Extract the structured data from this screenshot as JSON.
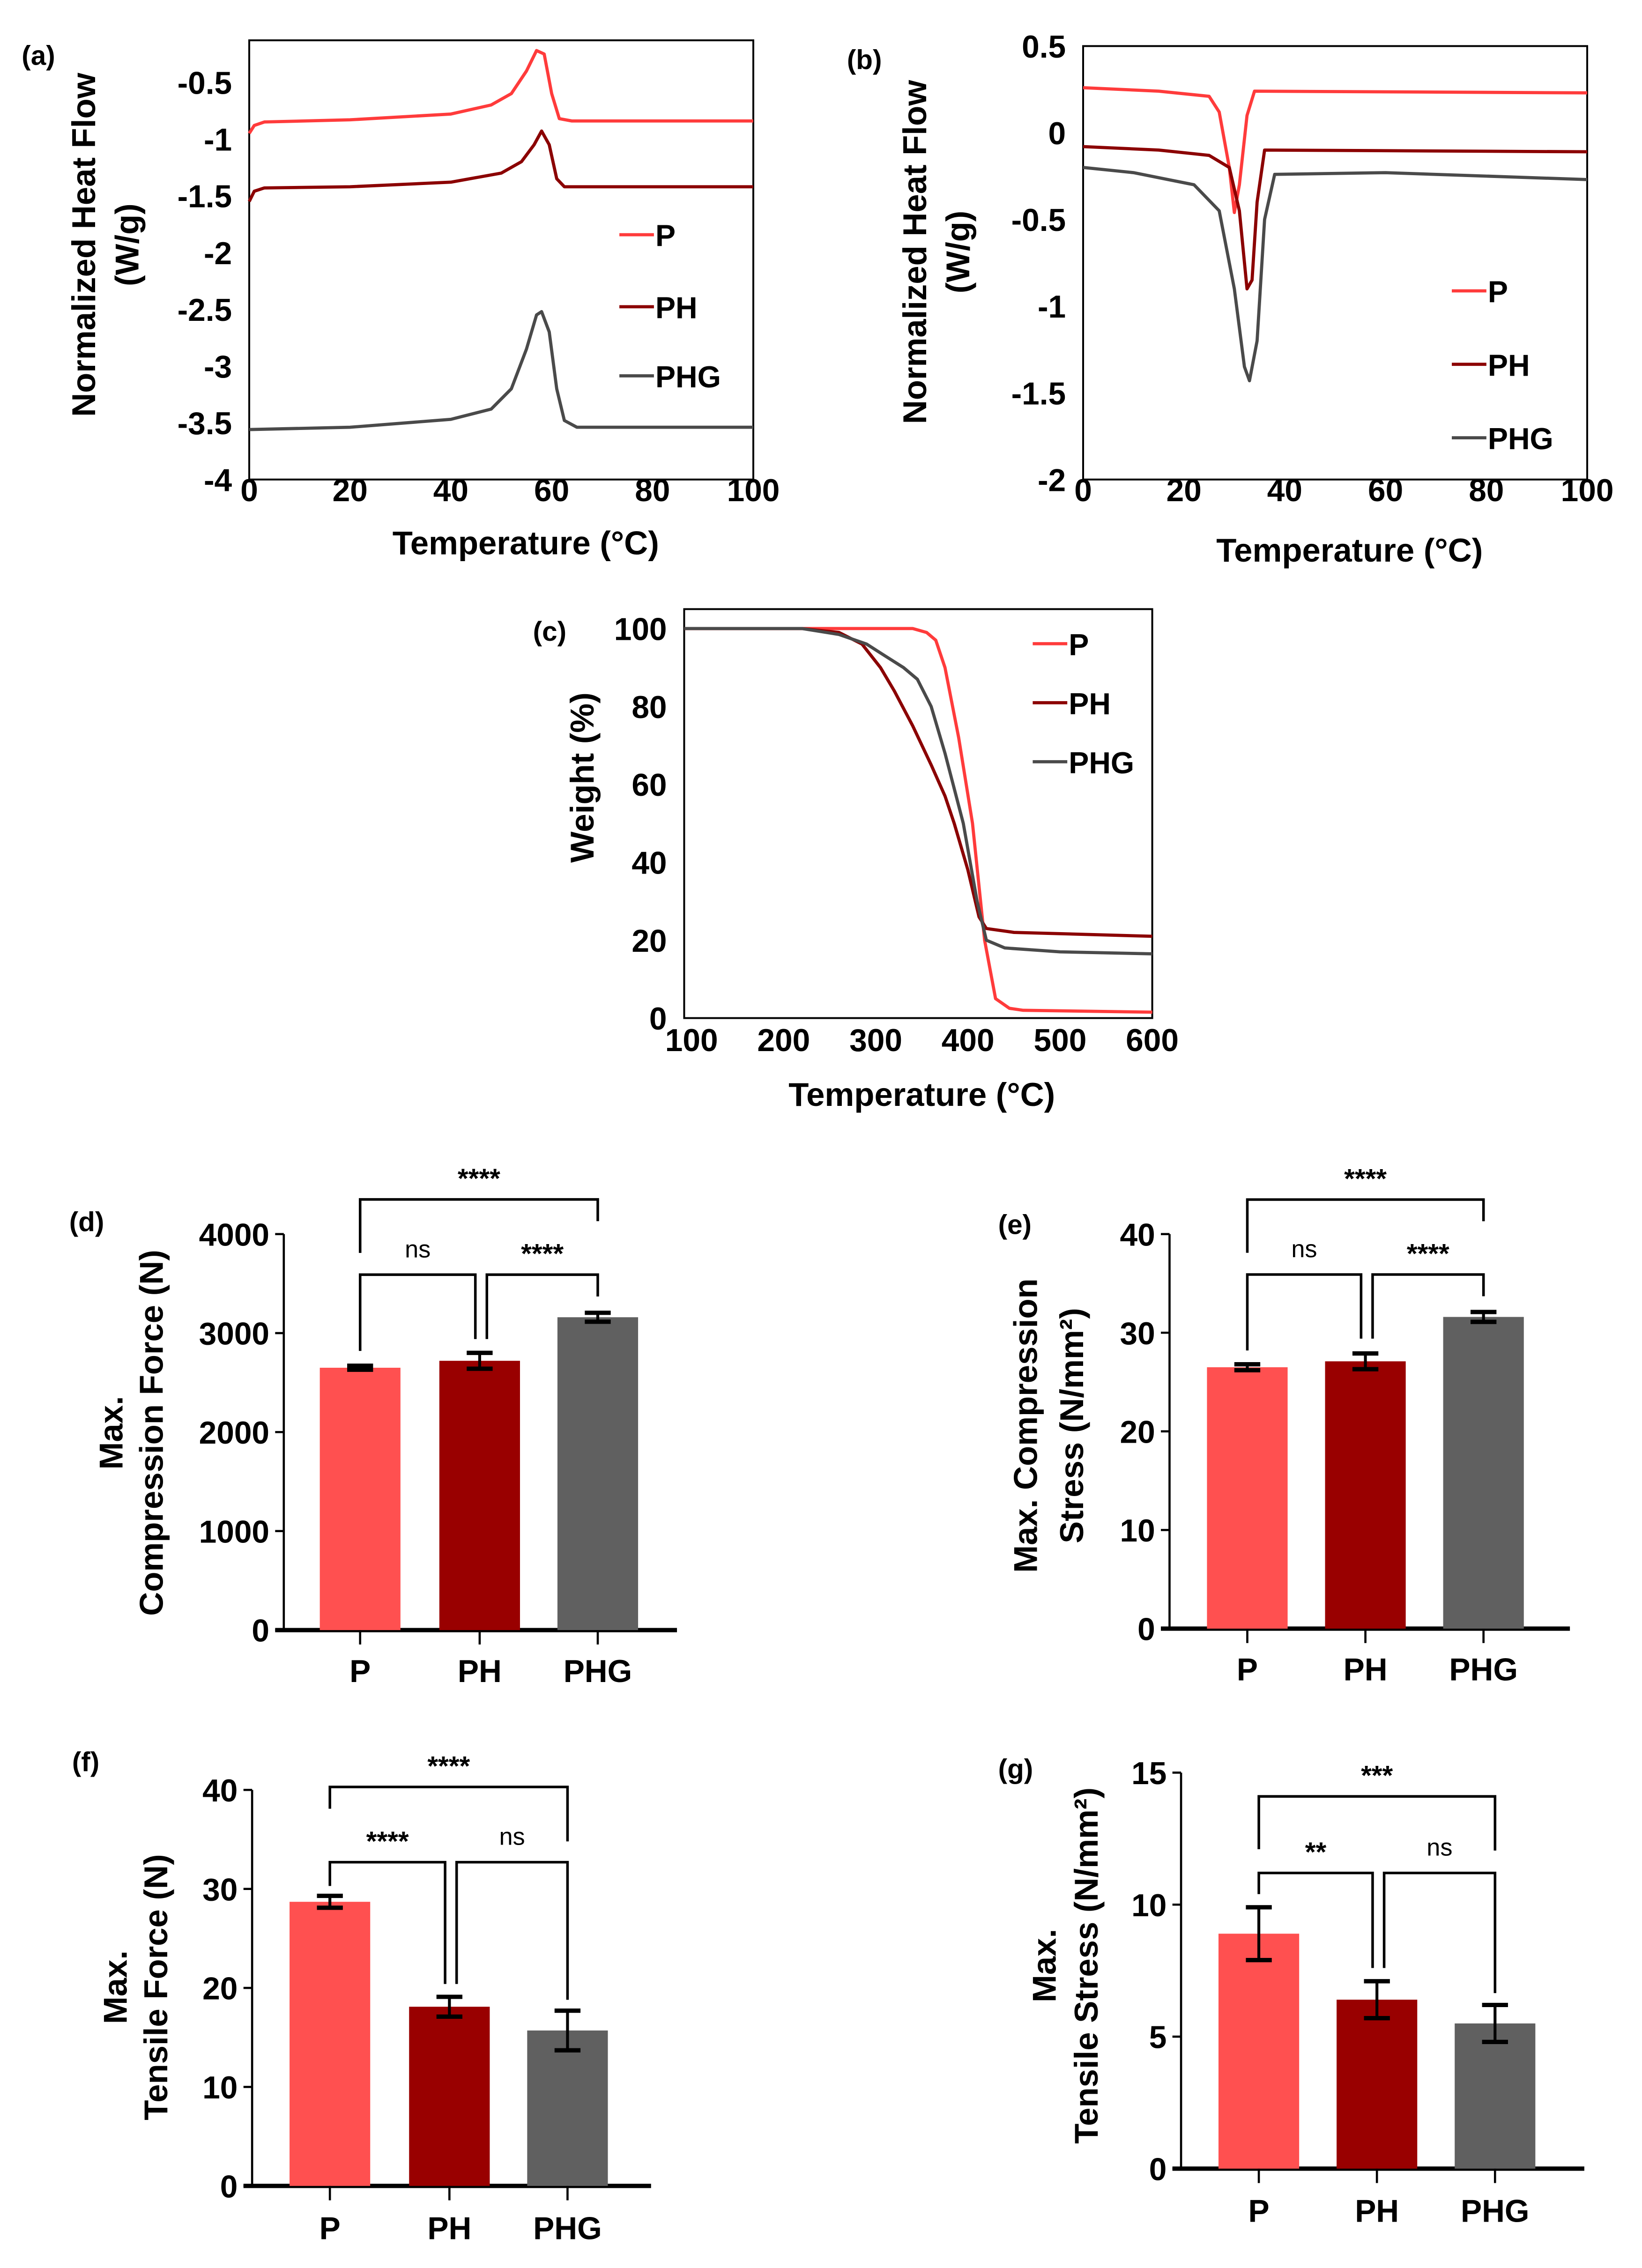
{
  "colors": {
    "P_line": "#ff3b3b",
    "PH_line": "#8b0000",
    "PHG_line": "#4a4a4a",
    "P_bar": "#ff5050",
    "PH_bar": "#990000",
    "PHG_bar": "#606060"
  },
  "chart_data": [
    {
      "id": "a",
      "panel_label": "(a)",
      "type": "line",
      "xlabel": "Temperature (°C)",
      "ylabel": [
        "Normalized Heat Flow",
        "(W/g)"
      ],
      "xlim": [
        0,
        100
      ],
      "ylim": [
        -4,
        -0.13
      ],
      "xticks": [
        0,
        20,
        40,
        60,
        80,
        100
      ],
      "yticks": [
        -0.5,
        -1,
        -1.5,
        -2,
        -2.5,
        -3,
        -3.5,
        -4
      ],
      "legend": "right-middle",
      "series": [
        {
          "name": "P",
          "points": [
            [
              0,
              -0.95
            ],
            [
              1,
              -0.88
            ],
            [
              3,
              -0.85
            ],
            [
              20,
              -0.83
            ],
            [
              40,
              -0.78
            ],
            [
              48,
              -0.7
            ],
            [
              52,
              -0.6
            ],
            [
              55,
              -0.4
            ],
            [
              57,
              -0.22
            ],
            [
              58.5,
              -0.25
            ],
            [
              60,
              -0.6
            ],
            [
              61.5,
              -0.82
            ],
            [
              64,
              -0.84
            ],
            [
              100,
              -0.84
            ]
          ]
        },
        {
          "name": "PH",
          "points": [
            [
              0,
              -1.55
            ],
            [
              1,
              -1.46
            ],
            [
              3,
              -1.43
            ],
            [
              20,
              -1.42
            ],
            [
              40,
              -1.38
            ],
            [
              50,
              -1.3
            ],
            [
              54,
              -1.2
            ],
            [
              56.5,
              -1.05
            ],
            [
              58,
              -0.93
            ],
            [
              59.5,
              -1.05
            ],
            [
              61,
              -1.35
            ],
            [
              62.5,
              -1.42
            ],
            [
              100,
              -1.42
            ]
          ]
        },
        {
          "name": "PHG",
          "points": [
            [
              0,
              -3.56
            ],
            [
              20,
              -3.54
            ],
            [
              40,
              -3.47
            ],
            [
              48,
              -3.38
            ],
            [
              52,
              -3.2
            ],
            [
              55,
              -2.85
            ],
            [
              57,
              -2.55
            ],
            [
              58,
              -2.52
            ],
            [
              59.5,
              -2.7
            ],
            [
              61,
              -3.2
            ],
            [
              62.5,
              -3.48
            ],
            [
              65,
              -3.54
            ],
            [
              100,
              -3.54
            ]
          ]
        }
      ]
    },
    {
      "id": "b",
      "panel_label": "(b)",
      "type": "line",
      "xlabel": "Temperature (°C)",
      "ylabel": [
        "Normalized Heat Flow",
        "(W/g)"
      ],
      "xlim": [
        0,
        100
      ],
      "ylim": [
        -2,
        0.5
      ],
      "xticks": [
        0,
        20,
        40,
        60,
        80,
        100
      ],
      "yticks": [
        0.5,
        0,
        -0.5,
        -1,
        -1.5,
        -2
      ],
      "legend": "right-bottom",
      "series": [
        {
          "name": "P",
          "points": [
            [
              0,
              0.26
            ],
            [
              15,
              0.24
            ],
            [
              25,
              0.21
            ],
            [
              27,
              0.12
            ],
            [
              29,
              -0.2
            ],
            [
              30,
              -0.46
            ],
            [
              31,
              -0.3
            ],
            [
              32.5,
              0.1
            ],
            [
              34,
              0.24
            ],
            [
              100,
              0.23
            ]
          ]
        },
        {
          "name": "PH",
          "points": [
            [
              0,
              -0.08
            ],
            [
              15,
              -0.1
            ],
            [
              25,
              -0.13
            ],
            [
              29,
              -0.2
            ],
            [
              31,
              -0.45
            ],
            [
              32.5,
              -0.9
            ],
            [
              33.5,
              -0.85
            ],
            [
              34.5,
              -0.4
            ],
            [
              36,
              -0.1
            ],
            [
              100,
              -0.11
            ]
          ]
        },
        {
          "name": "PHG",
          "points": [
            [
              0,
              -0.2
            ],
            [
              10,
              -0.23
            ],
            [
              22,
              -0.3
            ],
            [
              27,
              -0.45
            ],
            [
              30,
              -0.9
            ],
            [
              32,
              -1.35
            ],
            [
              33,
              -1.43
            ],
            [
              34.5,
              -1.2
            ],
            [
              36,
              -0.5
            ],
            [
              38,
              -0.24
            ],
            [
              60,
              -0.23
            ],
            [
              100,
              -0.27
            ]
          ]
        }
      ]
    },
    {
      "id": "c",
      "panel_label": "(c)",
      "type": "line",
      "xlabel": "Temperature (°C)",
      "ylabel": [
        "Weight (%)"
      ],
      "xlim": [
        92,
        600
      ],
      "ylim": [
        0,
        105
      ],
      "xticks": [
        100,
        200,
        300,
        400,
        500,
        600
      ],
      "yticks": [
        100,
        80,
        60,
        40,
        20,
        0
      ],
      "legend": "top-right",
      "series": [
        {
          "name": "P",
          "points": [
            [
              92,
              100
            ],
            [
              340,
              100
            ],
            [
              355,
              99
            ],
            [
              365,
              97
            ],
            [
              375,
              90
            ],
            [
              390,
              72
            ],
            [
              405,
              50
            ],
            [
              418,
              20
            ],
            [
              430,
              5
            ],
            [
              445,
              2.5
            ],
            [
              460,
              2
            ],
            [
              600,
              1.5
            ]
          ]
        },
        {
          "name": "PH",
          "points": [
            [
              92,
              100
            ],
            [
              220,
              100
            ],
            [
              260,
              99
            ],
            [
              285,
              96
            ],
            [
              305,
              90
            ],
            [
              320,
              84
            ],
            [
              340,
              75
            ],
            [
              360,
              65
            ],
            [
              375,
              57
            ],
            [
              385,
              50
            ],
            [
              400,
              38
            ],
            [
              412,
              26
            ],
            [
              420,
              23
            ],
            [
              450,
              22
            ],
            [
              600,
              21
            ]
          ]
        },
        {
          "name": "PHG",
          "points": [
            [
              92,
              100
            ],
            [
              220,
              100
            ],
            [
              260,
              98.5
            ],
            [
              290,
              96
            ],
            [
              310,
              93
            ],
            [
              330,
              90
            ],
            [
              345,
              87
            ],
            [
              360,
              80
            ],
            [
              375,
              68
            ],
            [
              395,
              50
            ],
            [
              410,
              30
            ],
            [
              420,
              20
            ],
            [
              440,
              18
            ],
            [
              500,
              17
            ],
            [
              600,
              16.5
            ]
          ]
        }
      ]
    },
    {
      "id": "d",
      "panel_label": "(d)",
      "type": "bar",
      "ylabel": [
        "Max.",
        "Compression Force (N)"
      ],
      "categories": [
        "P",
        "PH",
        "PHG"
      ],
      "values": [
        2650,
        2720,
        3160
      ],
      "errors": [
        20,
        80,
        45
      ],
      "ylim": [
        0,
        4000
      ],
      "yticks": [
        0,
        1000,
        2000,
        3000,
        4000
      ],
      "significance": [
        {
          "from": 0,
          "to": 2,
          "label": "****",
          "y": 4350,
          "left_end": 3810,
          "right_end": 4130
        },
        {
          "from": 0,
          "to": 1,
          "label": "ns",
          "y": 3590,
          "left_end": 2820,
          "right_end": 2940
        },
        {
          "from": 1,
          "to": 2,
          "label": "****",
          "y": 3590,
          "left_end": 2940,
          "right_end": 3370
        }
      ]
    },
    {
      "id": "e",
      "panel_label": "(e)",
      "type": "bar",
      "ylabel": [
        "Max. Compression",
        "Stress (N/mm²)"
      ],
      "categories": [
        "P",
        "PH",
        "PHG"
      ],
      "values": [
        26.5,
        27.1,
        31.6
      ],
      "errors": [
        0.3,
        0.8,
        0.5
      ],
      "ylim": [
        0,
        40
      ],
      "yticks": [
        0,
        10,
        20,
        30,
        40
      ],
      "significance": [
        {
          "from": 0,
          "to": 2,
          "label": "****",
          "y": 43.5,
          "left_end": 38.1,
          "right_end": 41.3
        },
        {
          "from": 0,
          "to": 1,
          "label": "ns",
          "y": 35.9,
          "left_end": 28.2,
          "right_end": 29.4
        },
        {
          "from": 1,
          "to": 2,
          "label": "****",
          "y": 35.9,
          "left_end": 29.4,
          "right_end": 33.7
        }
      ]
    },
    {
      "id": "f",
      "panel_label": "(f)",
      "type": "bar",
      "ylabel": [
        "Max.",
        "Tensile Force (N)"
      ],
      "categories": [
        "P",
        "PH",
        "PHG"
      ],
      "values": [
        28.7,
        18.1,
        15.7
      ],
      "errors": [
        0.6,
        1.0,
        2.0
      ],
      "ylim": [
        0,
        40
      ],
      "yticks": [
        0,
        10,
        20,
        30,
        40
      ],
      "significance": [
        {
          "from": 0,
          "to": 2,
          "label": "****",
          "y": 40.3,
          "left_end": 38.1,
          "right_end": 34.8
        },
        {
          "from": 0,
          "to": 1,
          "label": "****",
          "y": 32.7,
          "left_end": 30.3,
          "right_end": 20.4
        },
        {
          "from": 1,
          "to": 2,
          "label": "ns",
          "y": 32.7,
          "left_end": 20.4,
          "right_end": 18.8
        }
      ]
    },
    {
      "id": "g",
      "panel_label": "(g)",
      "type": "bar",
      "ylabel": [
        "Max.",
        "Tensile Stress (N/mm²)"
      ],
      "categories": [
        "P",
        "PH",
        "PHG"
      ],
      "values": [
        8.9,
        6.4,
        5.5
      ],
      "errors": [
        1.0,
        0.7,
        0.7
      ],
      "ylim": [
        0,
        15
      ],
      "yticks": [
        0,
        5,
        10,
        15
      ],
      "significance": [
        {
          "from": 0,
          "to": 2,
          "label": "***",
          "y": 14.1,
          "left_end": 12.1,
          "right_end": 12.05
        },
        {
          "from": 0,
          "to": 1,
          "label": "**",
          "y": 11.2,
          "left_end": 10.4,
          "right_end": 7.6
        },
        {
          "from": 1,
          "to": 2,
          "label": "ns",
          "y": 11.2,
          "left_end": 7.6,
          "right_end": 6.65
        }
      ]
    }
  ]
}
